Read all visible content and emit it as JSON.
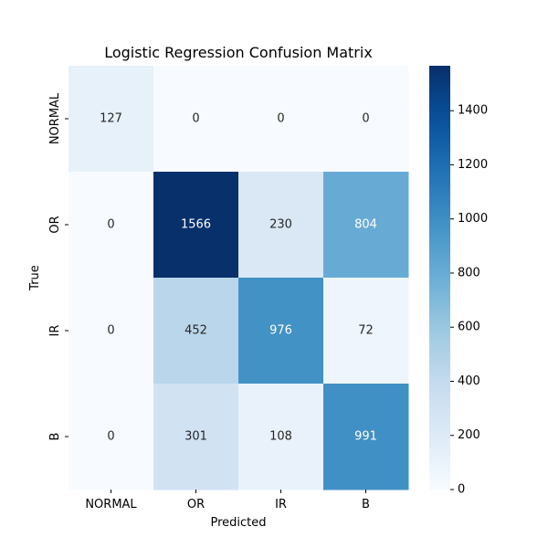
{
  "chart_data": {
    "type": "heatmap",
    "title": "Logistic Regression Confusion Matrix",
    "xlabel": "Predicted",
    "ylabel": "True",
    "x_categories": [
      "NORMAL",
      "OR",
      "IR",
      "B"
    ],
    "y_categories": [
      "NORMAL",
      "OR",
      "IR",
      "B"
    ],
    "values": [
      [
        127,
        0,
        0,
        0
      ],
      [
        0,
        1566,
        230,
        804
      ],
      [
        0,
        452,
        976,
        72
      ],
      [
        0,
        301,
        108,
        991
      ]
    ],
    "colormap": "Blues",
    "colorbar": {
      "range": [
        0,
        1566
      ],
      "ticks": [
        0,
        200,
        400,
        600,
        800,
        1000,
        1200,
        1400
      ]
    }
  }
}
